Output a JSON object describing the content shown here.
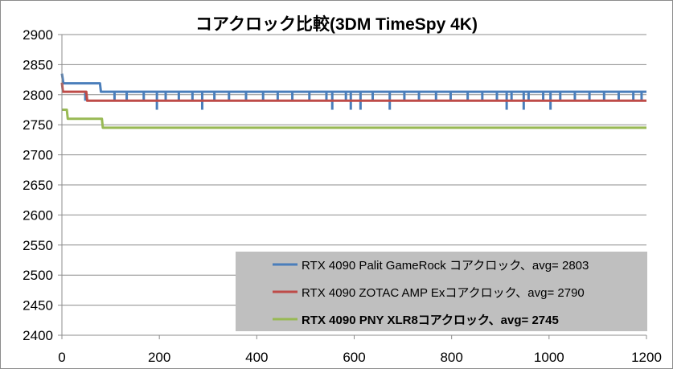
{
  "chart_data": {
    "type": "line",
    "title": "コアクロック比較(3DM TimeSpy 4K)",
    "xlabel": "",
    "ylabel": "",
    "xlim": [
      0,
      1200
    ],
    "ylim": [
      2400,
      2900
    ],
    "xticks": [
      0,
      200,
      400,
      600,
      800,
      1000,
      1200
    ],
    "yticks": [
      2400,
      2450,
      2500,
      2550,
      2600,
      2650,
      2700,
      2750,
      2800,
      2850,
      2900
    ],
    "grid": "horizontal",
    "legend_position": "bottom-right",
    "series": [
      {
        "name": "RTX 4090 Palit GameRock コアクロック、avg= 2803",
        "color": "#4a7ebb",
        "bold": false,
        "points": [
          [
            0,
            2835
          ],
          [
            3,
            2819
          ],
          [
            78,
            2819
          ],
          [
            80,
            2805
          ],
          [
            1200,
            2805
          ]
        ],
        "dips": [
          [
            48,
            2790
          ],
          [
            108,
            2790
          ],
          [
            133,
            2790
          ],
          [
            168,
            2790
          ],
          [
            195,
            2775
          ],
          [
            213,
            2790
          ],
          [
            240,
            2790
          ],
          [
            268,
            2790
          ],
          [
            288,
            2775
          ],
          [
            313,
            2790
          ],
          [
            343,
            2790
          ],
          [
            378,
            2790
          ],
          [
            413,
            2790
          ],
          [
            443,
            2790
          ],
          [
            473,
            2790
          ],
          [
            508,
            2790
          ],
          [
            543,
            2790
          ],
          [
            555,
            2775
          ],
          [
            583,
            2790
          ],
          [
            593,
            2775
          ],
          [
            613,
            2775
          ],
          [
            638,
            2790
          ],
          [
            673,
            2775
          ],
          [
            703,
            2790
          ],
          [
            733,
            2790
          ],
          [
            768,
            2790
          ],
          [
            798,
            2790
          ],
          [
            833,
            2790
          ],
          [
            863,
            2790
          ],
          [
            893,
            2790
          ],
          [
            913,
            2775
          ],
          [
            923,
            2790
          ],
          [
            948,
            2775
          ],
          [
            958,
            2790
          ],
          [
            988,
            2790
          ],
          [
            1003,
            2775
          ],
          [
            1023,
            2790
          ],
          [
            1053,
            2790
          ],
          [
            1083,
            2790
          ],
          [
            1113,
            2790
          ],
          [
            1143,
            2790
          ],
          [
            1173,
            2790
          ],
          [
            1190,
            2790
          ]
        ]
      },
      {
        "name": "RTX 4090 ZOTAC AMP Exコアクロック、avg= 2790",
        "color": "#be4b48",
        "bold": false,
        "points": [
          [
            0,
            2820
          ],
          [
            2,
            2805
          ],
          [
            50,
            2805
          ],
          [
            52,
            2790
          ],
          [
            1200,
            2790
          ]
        ],
        "dips": []
      },
      {
        "name": "RTX 4090 PNY XLR8コアクロック、avg= 2745",
        "color": "#98b954",
        "bold": true,
        "points": [
          [
            0,
            2775
          ],
          [
            10,
            2775
          ],
          [
            12,
            2760
          ],
          [
            82,
            2760
          ],
          [
            84,
            2745
          ],
          [
            1200,
            2745
          ]
        ],
        "dips": []
      }
    ]
  }
}
